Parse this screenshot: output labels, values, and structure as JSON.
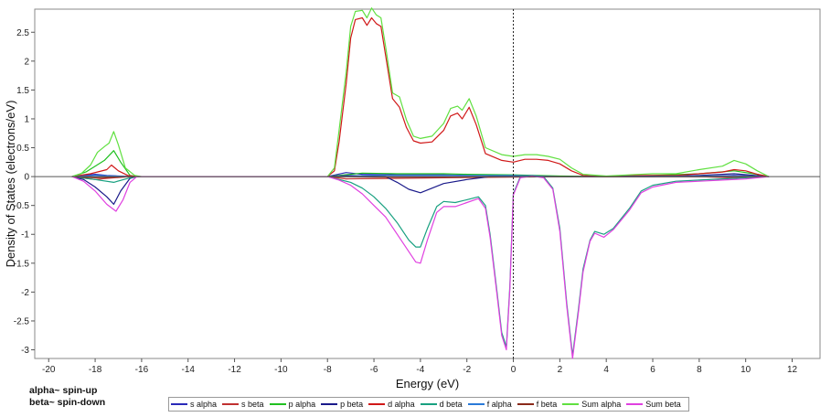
{
  "notes": {
    "alpha": "alpha~ spin-up",
    "beta": "beta~ spin-down"
  },
  "chart_data": {
    "type": "line",
    "title": "",
    "xlabel": "Energy (eV)",
    "ylabel": "Density of States (electrons/eV)",
    "xlim": [
      -20.6,
      13.2
    ],
    "ylim": [
      -3.15,
      2.9
    ],
    "xticks": [
      -20,
      -18,
      -16,
      -14,
      -12,
      -10,
      -8,
      -6,
      -4,
      -2,
      0,
      2,
      4,
      6,
      8,
      10,
      12
    ],
    "yticks": [
      -3,
      -2.5,
      -2,
      -1.5,
      -1,
      -0.5,
      0,
      0.5,
      1,
      1.5,
      2,
      2.5
    ],
    "fermi_level": 0,
    "grid": false,
    "legend_position": "bottom",
    "series": [
      {
        "name": "s alpha",
        "color": "#2a2ab8",
        "points": [
          [
            -19,
            0
          ],
          [
            -18,
            0.04
          ],
          [
            -17.5,
            0.02
          ],
          [
            -16.5,
            0
          ],
          [
            -8,
            0
          ],
          [
            -7.2,
            0.07
          ],
          [
            -6.5,
            0.04
          ],
          [
            -5,
            0.03
          ],
          [
            -3,
            0.03
          ],
          [
            -2,
            0.02
          ],
          [
            0,
            0.02
          ],
          [
            2,
            0
          ],
          [
            8,
            0
          ],
          [
            9.5,
            0.02
          ],
          [
            11,
            0
          ]
        ]
      },
      {
        "name": "s beta",
        "color": "#c03030",
        "points": [
          [
            -19,
            0
          ],
          [
            -18,
            -0.05
          ],
          [
            -17.5,
            -0.03
          ],
          [
            -16.5,
            0
          ],
          [
            -8,
            0
          ],
          [
            -7.2,
            -0.04
          ],
          [
            -5,
            -0.03
          ],
          [
            -3,
            -0.02
          ],
          [
            0,
            -0.01
          ],
          [
            2,
            0
          ],
          [
            8,
            0
          ],
          [
            9.5,
            -0.02
          ],
          [
            11,
            0
          ]
        ]
      },
      {
        "name": "p alpha",
        "color": "#20c020",
        "points": [
          [
            -19,
            0
          ],
          [
            -18.4,
            0.08
          ],
          [
            -18,
            0.18
          ],
          [
            -17.6,
            0.28
          ],
          [
            -17.2,
            0.45
          ],
          [
            -16.9,
            0.25
          ],
          [
            -16.5,
            0.02
          ],
          [
            -16.2,
            0
          ],
          [
            -8,
            0
          ],
          [
            -6.5,
            0.06
          ],
          [
            -5,
            0.05
          ],
          [
            -3,
            0.05
          ],
          [
            -2,
            0.04
          ],
          [
            0,
            0.03
          ],
          [
            2,
            0.01
          ],
          [
            4,
            0
          ],
          [
            6,
            0.02
          ],
          [
            8,
            0.05
          ],
          [
            9.5,
            0.1
          ],
          [
            10.5,
            0.04
          ],
          [
            11,
            0
          ]
        ]
      },
      {
        "name": "p beta",
        "color": "#1a1a8a",
        "points": [
          [
            -19,
            0
          ],
          [
            -18.5,
            -0.05
          ],
          [
            -18,
            -0.18
          ],
          [
            -17.5,
            -0.35
          ],
          [
            -17.2,
            -0.48
          ],
          [
            -16.9,
            -0.25
          ],
          [
            -16.5,
            -0.03
          ],
          [
            -16.2,
            0
          ],
          [
            -8,
            0
          ],
          [
            -7,
            0.02
          ],
          [
            -5.5,
            0
          ],
          [
            -5,
            -0.1
          ],
          [
            -4.5,
            -0.22
          ],
          [
            -4,
            -0.28
          ],
          [
            -3,
            -0.12
          ],
          [
            -2,
            -0.05
          ],
          [
            -1,
            0
          ],
          [
            0,
            0
          ],
          [
            2,
            0
          ],
          [
            4,
            0
          ],
          [
            6,
            0
          ],
          [
            8,
            0.02
          ],
          [
            9.5,
            0.05
          ],
          [
            11,
            0
          ]
        ]
      },
      {
        "name": "d alpha",
        "color": "#d01818",
        "points": [
          [
            -19,
            0
          ],
          [
            -18.2,
            0.05
          ],
          [
            -17.5,
            0.12
          ],
          [
            -17.3,
            0.2
          ],
          [
            -17,
            0.1
          ],
          [
            -16.6,
            0.02
          ],
          [
            -16.2,
            0
          ],
          [
            -8,
            0
          ],
          [
            -7.7,
            0.1
          ],
          [
            -7.5,
            0.6
          ],
          [
            -7.2,
            1.6
          ],
          [
            -7,
            2.4
          ],
          [
            -6.8,
            2.72
          ],
          [
            -6.5,
            2.75
          ],
          [
            -6.3,
            2.62
          ],
          [
            -6.1,
            2.75
          ],
          [
            -5.9,
            2.65
          ],
          [
            -5.7,
            2.6
          ],
          [
            -5.5,
            2.1
          ],
          [
            -5.2,
            1.35
          ],
          [
            -4.9,
            1.2
          ],
          [
            -4.6,
            0.85
          ],
          [
            -4.3,
            0.62
          ],
          [
            -4,
            0.58
          ],
          [
            -3.5,
            0.6
          ],
          [
            -3,
            0.8
          ],
          [
            -2.7,
            1.05
          ],
          [
            -2.4,
            1.1
          ],
          [
            -2.2,
            1.0
          ],
          [
            -1.9,
            1.2
          ],
          [
            -1.6,
            0.9
          ],
          [
            -1.2,
            0.4
          ],
          [
            -0.5,
            0.28
          ],
          [
            0,
            0.25
          ],
          [
            0.5,
            0.3
          ],
          [
            1,
            0.3
          ],
          [
            1.5,
            0.28
          ],
          [
            2,
            0.22
          ],
          [
            2.5,
            0.1
          ],
          [
            3,
            0.02
          ],
          [
            4,
            0
          ],
          [
            5,
            0.02
          ],
          [
            6,
            0.02
          ],
          [
            7,
            0.02
          ],
          [
            8,
            0.05
          ],
          [
            9,
            0.08
          ],
          [
            9.5,
            0.12
          ],
          [
            10,
            0.1
          ],
          [
            10.5,
            0.04
          ],
          [
            11,
            0
          ]
        ]
      },
      {
        "name": "d beta",
        "color": "#18a080",
        "points": [
          [
            -19,
            0
          ],
          [
            -18,
            -0.05
          ],
          [
            -17.2,
            -0.1
          ],
          [
            -16.5,
            -0.02
          ],
          [
            -16.2,
            0
          ],
          [
            -8,
            0
          ],
          [
            -7.5,
            -0.05
          ],
          [
            -7,
            -0.1
          ],
          [
            -6.5,
            -0.2
          ],
          [
            -6,
            -0.35
          ],
          [
            -5.5,
            -0.55
          ],
          [
            -5,
            -0.8
          ],
          [
            -4.5,
            -1.1
          ],
          [
            -4.2,
            -1.22
          ],
          [
            -4,
            -1.22
          ],
          [
            -3.7,
            -0.9
          ],
          [
            -3.3,
            -0.52
          ],
          [
            -3,
            -0.43
          ],
          [
            -2.5,
            -0.45
          ],
          [
            -2,
            -0.4
          ],
          [
            -1.5,
            -0.35
          ],
          [
            -1.2,
            -0.5
          ],
          [
            -1,
            -1.0
          ],
          [
            -0.7,
            -2.0
          ],
          [
            -0.5,
            -2.7
          ],
          [
            -0.3,
            -2.95
          ],
          [
            -0.15,
            -1.9
          ],
          [
            0,
            -0.3
          ],
          [
            0.3,
            0
          ],
          [
            0.8,
            0.02
          ],
          [
            1.3,
            0
          ],
          [
            1.7,
            -0.2
          ],
          [
            2,
            -0.9
          ],
          [
            2.3,
            -2.2
          ],
          [
            2.55,
            -3.1
          ],
          [
            2.8,
            -2.3
          ],
          [
            3,
            -1.6
          ],
          [
            3.3,
            -1.1
          ],
          [
            3.5,
            -0.95
          ],
          [
            3.9,
            -1.0
          ],
          [
            4.3,
            -0.9
          ],
          [
            5,
            -0.55
          ],
          [
            5.5,
            -0.25
          ],
          [
            6,
            -0.15
          ],
          [
            7,
            -0.08
          ],
          [
            8,
            -0.06
          ],
          [
            9,
            -0.04
          ],
          [
            10,
            -0.02
          ],
          [
            11,
            0
          ]
        ]
      },
      {
        "name": "f alpha",
        "color": "#2a7ad8",
        "points": [
          [
            -19,
            0
          ],
          [
            -18,
            0.02
          ],
          [
            -16.5,
            0
          ],
          [
            -8,
            0
          ],
          [
            -6,
            0.02
          ],
          [
            -3,
            0.02
          ],
          [
            0,
            0.02
          ],
          [
            2,
            0
          ],
          [
            8,
            0.01
          ],
          [
            10,
            0.01
          ],
          [
            11,
            0
          ]
        ]
      },
      {
        "name": "f beta",
        "color": "#8a2a1a",
        "points": [
          [
            -19,
            0
          ],
          [
            -18,
            -0.02
          ],
          [
            -16.5,
            0
          ],
          [
            -8,
            0
          ],
          [
            -6,
            -0.01
          ],
          [
            -3,
            -0.01
          ],
          [
            0,
            0
          ],
          [
            2,
            0
          ],
          [
            11,
            0
          ]
        ]
      },
      {
        "name": "Sum alpha",
        "color": "#60e040",
        "points": [
          [
            -19,
            0
          ],
          [
            -18.6,
            0.05
          ],
          [
            -18.2,
            0.2
          ],
          [
            -17.9,
            0.42
          ],
          [
            -17.6,
            0.52
          ],
          [
            -17.4,
            0.58
          ],
          [
            -17.2,
            0.78
          ],
          [
            -17,
            0.55
          ],
          [
            -16.7,
            0.15
          ],
          [
            -16.3,
            0.02
          ],
          [
            -16,
            0
          ],
          [
            -8,
            0
          ],
          [
            -7.7,
            0.15
          ],
          [
            -7.5,
            0.8
          ],
          [
            -7.2,
            1.8
          ],
          [
            -7,
            2.6
          ],
          [
            -6.8,
            2.86
          ],
          [
            -6.5,
            2.88
          ],
          [
            -6.3,
            2.75
          ],
          [
            -6.1,
            2.92
          ],
          [
            -5.9,
            2.8
          ],
          [
            -5.7,
            2.75
          ],
          [
            -5.5,
            2.25
          ],
          [
            -5.2,
            1.45
          ],
          [
            -4.9,
            1.38
          ],
          [
            -4.6,
            0.98
          ],
          [
            -4.3,
            0.7
          ],
          [
            -4,
            0.66
          ],
          [
            -3.5,
            0.7
          ],
          [
            -3,
            0.92
          ],
          [
            -2.7,
            1.18
          ],
          [
            -2.4,
            1.22
          ],
          [
            -2.2,
            1.15
          ],
          [
            -1.9,
            1.35
          ],
          [
            -1.6,
            1.05
          ],
          [
            -1.2,
            0.5
          ],
          [
            -0.5,
            0.38
          ],
          [
            0,
            0.35
          ],
          [
            0.5,
            0.38
          ],
          [
            1,
            0.38
          ],
          [
            1.5,
            0.35
          ],
          [
            2,
            0.3
          ],
          [
            2.5,
            0.15
          ],
          [
            3,
            0.04
          ],
          [
            4,
            0.01
          ],
          [
            5,
            0.03
          ],
          [
            6,
            0.05
          ],
          [
            7,
            0.05
          ],
          [
            8,
            0.12
          ],
          [
            9,
            0.18
          ],
          [
            9.5,
            0.28
          ],
          [
            10,
            0.22
          ],
          [
            10.5,
            0.1
          ],
          [
            11,
            0
          ]
        ]
      },
      {
        "name": "Sum beta",
        "color": "#e040e0",
        "points": [
          [
            -19,
            0
          ],
          [
            -18.5,
            -0.08
          ],
          [
            -18,
            -0.25
          ],
          [
            -17.5,
            -0.48
          ],
          [
            -17.1,
            -0.6
          ],
          [
            -16.8,
            -0.4
          ],
          [
            -16.5,
            -0.1
          ],
          [
            -16.2,
            0
          ],
          [
            -8,
            0
          ],
          [
            -7.5,
            -0.06
          ],
          [
            -7,
            -0.15
          ],
          [
            -6.5,
            -0.3
          ],
          [
            -6,
            -0.5
          ],
          [
            -5.5,
            -0.7
          ],
          [
            -5,
            -1.0
          ],
          [
            -4.5,
            -1.3
          ],
          [
            -4.2,
            -1.48
          ],
          [
            -4,
            -1.5
          ],
          [
            -3.7,
            -1.1
          ],
          [
            -3.3,
            -0.62
          ],
          [
            -3,
            -0.52
          ],
          [
            -2.5,
            -0.52
          ],
          [
            -2,
            -0.45
          ],
          [
            -1.5,
            -0.38
          ],
          [
            -1.2,
            -0.55
          ],
          [
            -1,
            -1.05
          ],
          [
            -0.7,
            -2.05
          ],
          [
            -0.5,
            -2.75
          ],
          [
            -0.3,
            -3.0
          ],
          [
            -0.15,
            -1.95
          ],
          [
            0,
            -0.32
          ],
          [
            0.3,
            -0.02
          ],
          [
            0.8,
            0.01
          ],
          [
            1.3,
            -0.02
          ],
          [
            1.7,
            -0.22
          ],
          [
            2,
            -0.95
          ],
          [
            2.3,
            -2.25
          ],
          [
            2.55,
            -3.15
          ],
          [
            2.8,
            -2.35
          ],
          [
            3,
            -1.65
          ],
          [
            3.3,
            -1.12
          ],
          [
            3.5,
            -0.98
          ],
          [
            3.9,
            -1.05
          ],
          [
            4.3,
            -0.92
          ],
          [
            5,
            -0.58
          ],
          [
            5.5,
            -0.28
          ],
          [
            6,
            -0.18
          ],
          [
            7,
            -0.1
          ],
          [
            8,
            -0.08
          ],
          [
            9,
            -0.06
          ],
          [
            10,
            -0.04
          ],
          [
            11,
            0
          ]
        ]
      }
    ]
  }
}
